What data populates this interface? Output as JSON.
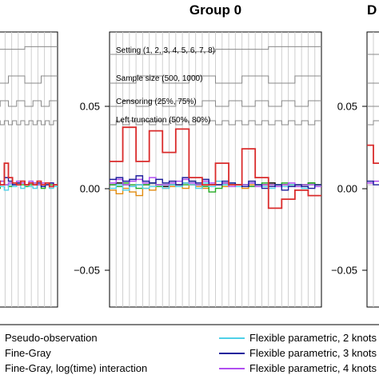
{
  "chart_data": {
    "type": "line",
    "panels": [
      {
        "title": "",
        "side": "left"
      },
      {
        "title": "Group 0",
        "side": "center"
      },
      {
        "title": "D",
        "side": "right"
      }
    ],
    "y_ticks": [
      0.05,
      0.0,
      -0.05
    ],
    "y_tick_labels": [
      "0.05",
      "0.00",
      "−0.05"
    ],
    "ylim": [
      -0.068,
      0.085
    ],
    "n_scenarios": 32,
    "settings": [
      {
        "label": "Setting (1, 2, 3, 4, 5, 6, 7, 8)",
        "levels": 8,
        "block": 4
      },
      {
        "label": "Sample size (500, 1000)",
        "levels": 2,
        "block": 2
      },
      {
        "label": "Censoring (25%, 75%)",
        "levels": 2,
        "block": 1
      },
      {
        "label": "Left truncation (50%, 80%)",
        "levels": 2,
        "block": 0.5
      }
    ],
    "series": [
      {
        "name": "Pseudo-observation",
        "color": "#000000"
      },
      {
        "name": "Fine-Gray",
        "color": "#22aa22"
      },
      {
        "name": "Fine-Gray, log(time) interaction",
        "color": "#e08a0e"
      },
      {
        "name": "Flexible parametric, 2 knots",
        "color": "#4fd0e8"
      },
      {
        "name": "Flexible parametric, 3 knots",
        "color": "#1c1c9c"
      },
      {
        "name": "Flexible parametric, 4 knots",
        "color": "#b04ef0"
      },
      {
        "name": "",
        "color": "#d92b2b"
      }
    ],
    "center_values": {
      "red": [
        0.013,
        0.013,
        0.032,
        0.032,
        0.013,
        0.013,
        0.03,
        0.03,
        0.018,
        0.018,
        0.031,
        0.031,
        0.004,
        0.004,
        0.0,
        0.0,
        0.012,
        0.012,
        0.0,
        0.0,
        0.02,
        0.02,
        0.004,
        0.004,
        -0.013,
        -0.013,
        -0.008,
        -0.008,
        -0.003,
        -0.003,
        -0.006,
        -0.006
      ],
      "blue": [
        0.003,
        0.004,
        0.002,
        0.003,
        0.005,
        0.002,
        0.001,
        0.003,
        0.001,
        0.002,
        0.0,
        0.004,
        0.002,
        0.001,
        0.003,
        0.0,
        0.0,
        0.002,
        0.001,
        0.0,
        -0.001,
        0.002,
        0.0,
        -0.002,
        -0.001,
        0.0,
        -0.003,
        -0.001,
        0.0,
        -0.001,
        -0.002,
        0.0
      ],
      "purple": [
        0.001,
        0.003,
        0.0,
        0.002,
        0.003,
        0.001,
        0.004,
        0.0,
        0.0,
        0.001,
        0.002,
        0.003,
        0.001,
        0.0,
        0.002,
        0.001,
        0.0,
        0.001,
        -0.001,
        0.0,
        0.0,
        0.001,
        -0.001,
        0.0,
        0.0,
        -0.001,
        0.0,
        0.001,
        -0.001,
        0.0,
        0.0,
        -0.001
      ],
      "cyan": [
        -0.002,
        0.0,
        -0.003,
        -0.001,
        0.0,
        -0.002,
        -0.001,
        0.0,
        -0.002,
        0.0,
        -0.001,
        0.001,
        0.0,
        -0.002,
        0.001,
        -0.001,
        0.002,
        0.0,
        0.001,
        -0.001,
        0.0,
        0.001,
        0.0,
        -0.001,
        -0.002,
        0.0,
        -0.001,
        0.0,
        0.0,
        -0.002,
        0.0,
        -0.001
      ],
      "green": [
        0.0,
        -0.001,
        0.001,
        0.0,
        -0.002,
        0.0,
        0.001,
        -0.001,
        0.0,
        0.0,
        -0.001,
        0.0,
        0.002,
        0.0,
        -0.001,
        -0.004,
        -0.002,
        0.0,
        0.001,
        0.0,
        0.0,
        -0.001,
        0.0,
        0.001,
        0.0,
        0.0,
        0.001,
        0.0,
        -0.001,
        0.0,
        0.001,
        0.0
      ],
      "orange": [
        -0.003,
        -0.005,
        -0.002,
        -0.004,
        -0.006,
        -0.002,
        -0.003,
        0.0,
        -0.002,
        -0.001,
        0.0,
        -0.002,
        0.0,
        -0.001,
        -0.002,
        0.0,
        0.0,
        -0.001,
        0.0,
        0.0,
        -0.002,
        0.0,
        -0.001,
        0.0,
        0.0,
        -0.001,
        0.0,
        0.0,
        0.0,
        -0.001,
        0.0,
        0.0
      ],
      "black": [
        0.0,
        0.001,
        0.0,
        -0.001,
        0.0,
        0.0,
        0.001,
        0.0,
        -0.001,
        0.0,
        0.0,
        0.001,
        0.0,
        0.0,
        -0.001,
        0.0,
        0.0,
        0.001,
        0.0,
        0.0,
        0.0,
        -0.001,
        0.0,
        0.0,
        0.001,
        0.0,
        0.0,
        -0.001,
        0.0,
        0.0,
        0.001,
        0.0
      ]
    },
    "left_values": {
      "red": [
        0.0,
        0.002,
        0.0,
        0.012,
        0.004,
        0.001,
        0.0,
        0.002,
        0.0,
        0.001,
        0.0,
        0.002,
        0.0,
        0.001,
        -0.001,
        0.0
      ],
      "blue": [
        0.003,
        0.002,
        0.0,
        0.004,
        0.002,
        0.0,
        0.001,
        0.002,
        0.0,
        0.001,
        0.0,
        0.001,
        -0.001,
        0.0,
        0.001,
        0.0
      ],
      "green": [
        0.0,
        -0.002,
        0.002,
        0.0,
        -0.001,
        0.0,
        0.001,
        0.0,
        -0.001,
        0.0,
        0.001,
        0.0,
        -0.002,
        0.0,
        0.0,
        -0.001
      ],
      "cyan": [
        -0.002,
        0.0,
        -0.001,
        -0.003,
        0.0,
        -0.001,
        0.0,
        -0.002,
        0.0,
        -0.001,
        -0.002,
        0.0,
        -0.001,
        0.0,
        -0.002,
        -0.001
      ],
      "purple": [
        0.001,
        0.0,
        0.002,
        0.0,
        0.001,
        0.0,
        0.002,
        0.001,
        0.0,
        0.002,
        0.001,
        0.0,
        0.001,
        0.0,
        0.001,
        0.0
      ]
    },
    "right_values": {
      "red": [
        0.022,
        0.012,
        0.0,
        -0.02,
        -0.02
      ],
      "blue": [
        0.002,
        0.0,
        0.001,
        0.0,
        0.001
      ],
      "purple": [
        0.001,
        0.002,
        0.0,
        0.001,
        0.0
      ]
    }
  }
}
